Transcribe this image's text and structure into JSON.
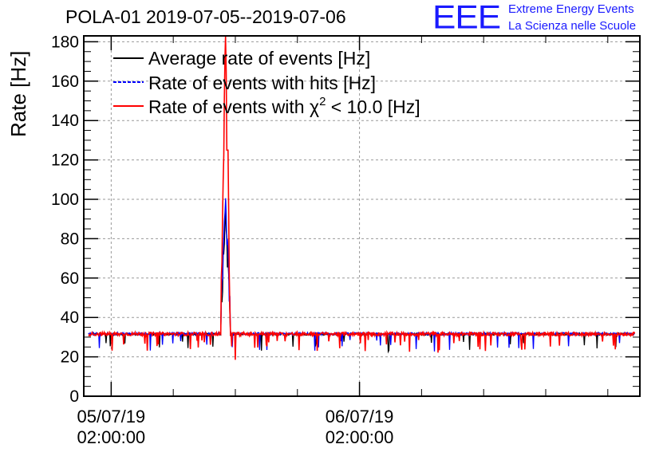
{
  "header": {
    "title": "POLA-01 2019-07-05--2019-07-06",
    "logo": "EEE",
    "org_line1": "Extreme Energy Events",
    "org_line2": "La Scienza nelle Scuole"
  },
  "chart_data": {
    "type": "line",
    "title": "POLA-01 2019-07-05--2019-07-06",
    "ylabel": "Rate [Hz]",
    "xlabel": "",
    "ylim": [
      0,
      183
    ],
    "xlim_hours_from_2019_07_05_00_00": [
      -0.65,
      53.1
    ],
    "y_ticks": [
      0,
      20,
      40,
      60,
      80,
      100,
      120,
      140,
      160,
      180
    ],
    "x_ticks": [
      {
        "date": "05/07/19",
        "time": "02:00:00",
        "hours": 2
      },
      {
        "date": "06/07/19",
        "time": "02:00:00",
        "hours": 26
      }
    ],
    "grid": true,
    "legend": {
      "placement": "top-left"
    },
    "series": [
      {
        "name": "Average rate of events [Hz]",
        "color": "#000000",
        "baseline": 31.5,
        "noise": 0.5,
        "spike_center": 13.05,
        "spike_peak": 95
      },
      {
        "name": "Rate of events with hits [Hz]",
        "color": "#0000ff",
        "baseline": 31.7,
        "noise": 0.6,
        "spike_center": 13.05,
        "spike_peak": 100
      },
      {
        "name": "Rate of events with χ2 < 10.0 [Hz]",
        "name_parts": [
          "Rate of events with χ",
          "2",
          " < 10.0 [Hz]"
        ],
        "color": "#ff0000",
        "baseline": 31.6,
        "noise": 0.9,
        "spike_center": 13.05,
        "spike_peak": 183
      }
    ],
    "data_range_hours": [
      -0.2,
      52.6
    ]
  }
}
